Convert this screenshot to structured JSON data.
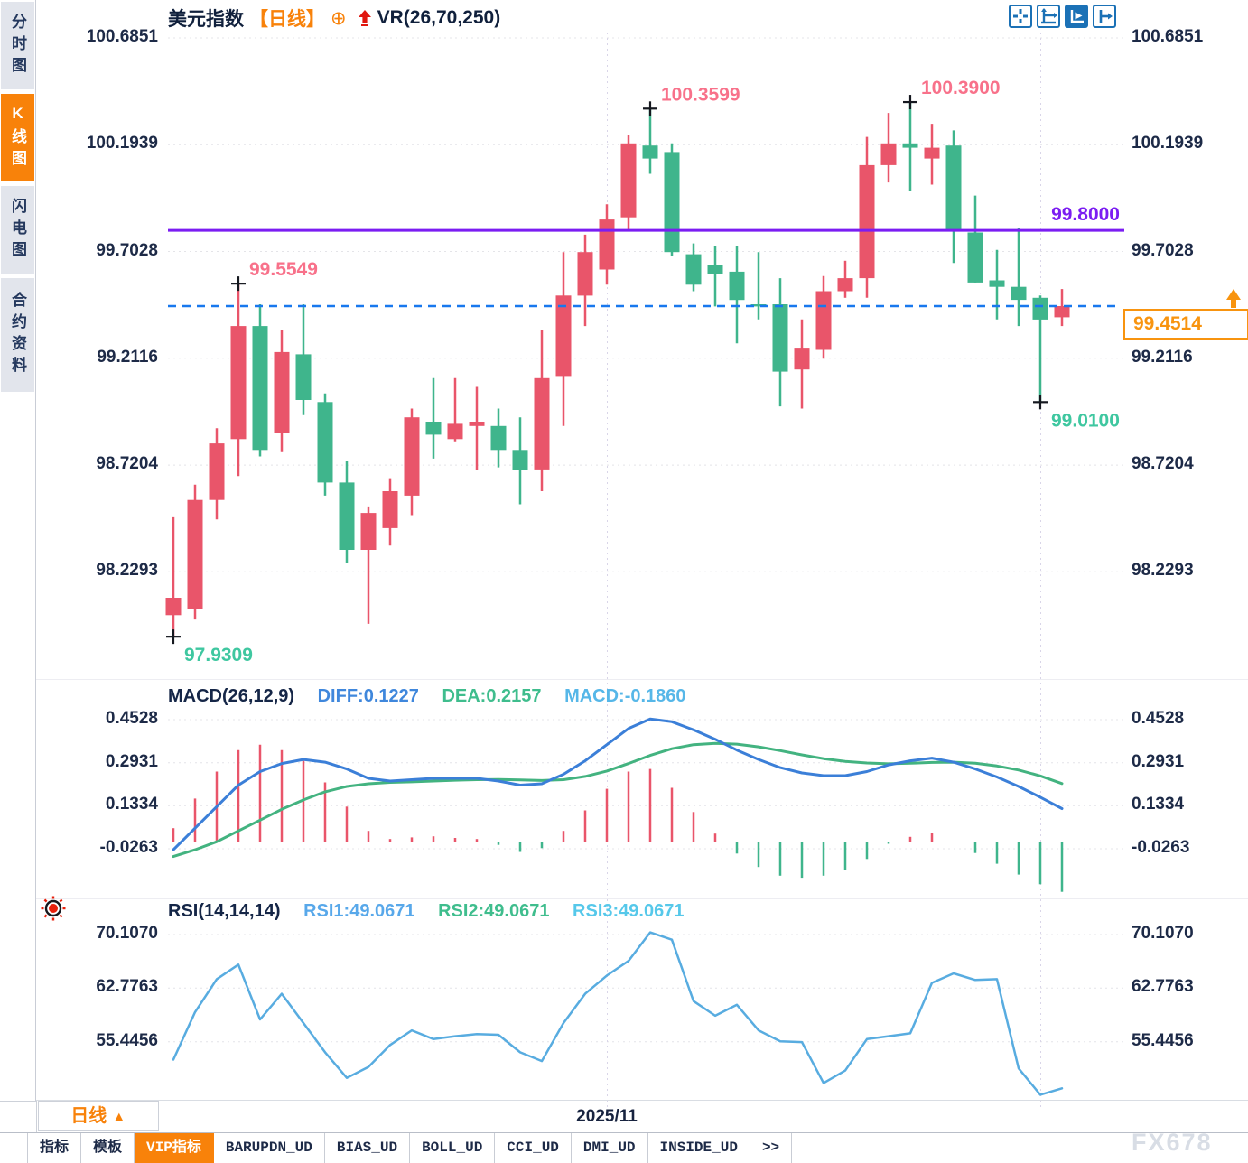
{
  "sidebar": {
    "items": [
      {
        "label": "分时图",
        "active": false
      },
      {
        "label": "K线图",
        "active": true
      },
      {
        "label": "闪电图",
        "active": false
      },
      {
        "label": "合约资料",
        "active": false
      }
    ]
  },
  "header": {
    "symbol": "美元指数",
    "period_tag": "【日线】",
    "plus_icon": "⊕",
    "overlay_indicator": "VR(26,70,250)"
  },
  "toolbar_icons": [
    "crosshair",
    "fit-axis",
    "axis-play",
    "pane-export"
  ],
  "current_price": {
    "label": "99.4514"
  },
  "hline": {
    "label": "99.8000"
  },
  "macd_header": {
    "name": "MACD(26,12,9)",
    "diff": "DIFF:0.1227",
    "dea": "DEA:0.2157",
    "macd": "MACD:-0.1860"
  },
  "rsi_header": {
    "name": "RSI(14,14,14)",
    "rsi1": "RSI1:49.0671",
    "rsi2": "RSI2:49.0671",
    "rsi3": "RSI3:49.0671"
  },
  "bottom": {
    "period_button": "日线",
    "period_arrow": "▲",
    "date_label": "2025/11",
    "watermark": "FX678",
    "tabs": [
      {
        "label": "指标",
        "active": false
      },
      {
        "label": "模板",
        "active": false
      },
      {
        "label": "VIP指标",
        "active": true
      },
      {
        "label": "BARUPDN_UD",
        "active": false
      },
      {
        "label": "BIAS_UD",
        "active": false
      },
      {
        "label": "BOLL_UD",
        "active": false
      },
      {
        "label": "CCI_UD",
        "active": false
      },
      {
        "label": "DMI_UD",
        "active": false
      },
      {
        "label": "INSIDE_UD",
        "active": false
      },
      {
        "label": ">>",
        "active": false
      }
    ]
  },
  "colors": {
    "up": "#e9556a",
    "down": "#3fb58c",
    "hline": "#7b1df2",
    "price_line": "#1878ee",
    "accent_orange": "#f8940f",
    "ann_pink": "#f8718a",
    "ann_teal": "#3fc7a0",
    "diff_line": "#3b7fd8",
    "dea_line": "#43b380",
    "rsi_line": "#58ace0",
    "grid": "#e4e4e8",
    "vgrid": "#d9d5e8",
    "cross": "#15181f",
    "icon_blue": "#1b71b6"
  },
  "chart_data": {
    "type": "candlestick",
    "title": "美元指数 日线",
    "x_axis": {
      "visible_label": "2025/11",
      "month_gridline_idx": [
        20,
        40
      ]
    },
    "main": {
      "ytick_labels": [
        "100.6851",
        "100.1939",
        "99.7028",
        "99.2116",
        "98.7204",
        "98.2293"
      ],
      "yticks": [
        100.6851,
        100.1939,
        99.7028,
        99.2116,
        98.7204,
        98.2293
      ],
      "hline_price": 99.8,
      "last_price": 99.4514,
      "candles": [
        [
          98.03,
          98.48,
          97.931,
          98.11
        ],
        [
          98.06,
          98.63,
          98.01,
          98.56
        ],
        [
          98.56,
          98.89,
          98.47,
          98.82
        ],
        [
          98.84,
          99.5549,
          98.67,
          99.36
        ],
        [
          99.36,
          99.46,
          98.76,
          98.79
        ],
        [
          98.87,
          99.34,
          98.78,
          99.24
        ],
        [
          99.23,
          99.46,
          98.95,
          99.02
        ],
        [
          99.01,
          99.05,
          98.58,
          98.64
        ],
        [
          98.64,
          98.74,
          98.27,
          98.33
        ],
        [
          98.33,
          98.53,
          97.99,
          98.5
        ],
        [
          98.43,
          98.66,
          98.35,
          98.6
        ],
        [
          98.58,
          98.98,
          98.49,
          98.94
        ],
        [
          98.92,
          99.12,
          98.75,
          98.86
        ],
        [
          98.84,
          99.12,
          98.83,
          98.91
        ],
        [
          98.9,
          99.08,
          98.7,
          98.92
        ],
        [
          98.9,
          98.98,
          98.71,
          98.79
        ],
        [
          98.79,
          98.94,
          98.54,
          98.7
        ],
        [
          98.7,
          99.34,
          98.6,
          99.12
        ],
        [
          99.13,
          99.7,
          98.9,
          99.5
        ],
        [
          99.5,
          99.78,
          99.36,
          99.7
        ],
        [
          99.62,
          99.92,
          99.55,
          99.85
        ],
        [
          99.86,
          100.24,
          99.8,
          100.2
        ],
        [
          100.19,
          100.3599,
          100.06,
          100.13
        ],
        [
          100.16,
          100.2,
          99.68,
          99.7
        ],
        [
          99.69,
          99.74,
          99.52,
          99.55
        ],
        [
          99.64,
          99.73,
          99.45,
          99.6
        ],
        [
          99.61,
          99.73,
          99.28,
          99.48
        ],
        [
          99.46,
          99.7,
          99.39,
          99.45
        ],
        [
          99.46,
          99.58,
          98.99,
          99.15
        ],
        [
          99.16,
          99.39,
          98.98,
          99.26
        ],
        [
          99.25,
          99.59,
          99.21,
          99.52
        ],
        [
          99.52,
          99.66,
          99.49,
          99.58
        ],
        [
          99.58,
          100.23,
          99.49,
          100.1
        ],
        [
          100.1,
          100.34,
          100.02,
          100.2
        ],
        [
          100.2,
          100.39,
          99.98,
          100.18
        ],
        [
          100.13,
          100.29,
          100.01,
          100.18
        ],
        [
          100.19,
          100.26,
          99.65,
          99.8
        ],
        [
          99.79,
          99.96,
          99.56,
          99.56
        ],
        [
          99.57,
          99.71,
          99.39,
          99.54
        ],
        [
          99.54,
          99.81,
          99.36,
          99.48
        ],
        [
          99.49,
          99.5,
          99.01,
          99.39
        ],
        [
          99.4,
          99.53,
          99.36,
          99.4514
        ]
      ],
      "annotations": [
        {
          "text": "99.5549",
          "idx": 3,
          "price": 99.5549,
          "pos": "high",
          "color": "#f8718a"
        },
        {
          "text": "100.3599",
          "idx": 22,
          "price": 100.3599,
          "pos": "high",
          "color": "#f8718a"
        },
        {
          "text": "100.3900",
          "idx": 34,
          "price": 100.39,
          "pos": "high",
          "color": "#f8718a"
        },
        {
          "text": "97.9309",
          "idx": 0,
          "price": 97.9309,
          "pos": "low",
          "color": "#3fc7a0"
        },
        {
          "text": "99.0100",
          "idx": 40,
          "price": 99.01,
          "pos": "low",
          "color": "#3fc7a0"
        }
      ]
    },
    "macd": {
      "ytick_labels": [
        "0.4528",
        "0.2931",
        "0.1334",
        "-0.0263"
      ],
      "yticks": [
        0.4528,
        0.2931,
        0.1334,
        -0.0263
      ],
      "diff": [
        -0.03,
        0.05,
        0.13,
        0.21,
        0.26,
        0.29,
        0.305,
        0.295,
        0.27,
        0.235,
        0.225,
        0.23,
        0.235,
        0.235,
        0.235,
        0.225,
        0.21,
        0.215,
        0.25,
        0.3,
        0.36,
        0.42,
        0.455,
        0.445,
        0.415,
        0.38,
        0.34,
        0.305,
        0.275,
        0.255,
        0.245,
        0.245,
        0.26,
        0.285,
        0.3,
        0.31,
        0.295,
        0.27,
        0.24,
        0.205,
        0.165,
        0.1227
      ],
      "dea": [
        -0.055,
        -0.03,
        0.0,
        0.04,
        0.08,
        0.12,
        0.155,
        0.185,
        0.205,
        0.215,
        0.22,
        0.222,
        0.225,
        0.228,
        0.23,
        0.231,
        0.229,
        0.227,
        0.23,
        0.242,
        0.262,
        0.29,
        0.32,
        0.345,
        0.36,
        0.365,
        0.362,
        0.352,
        0.338,
        0.322,
        0.308,
        0.298,
        0.292,
        0.289,
        0.291,
        0.294,
        0.295,
        0.291,
        0.281,
        0.266,
        0.244,
        0.2157
      ]
    },
    "rsi": {
      "ytick_labels": [
        "70.1070",
        "62.7763",
        "55.4456"
      ],
      "yticks": [
        70.107,
        62.7763,
        55.4456
      ],
      "values": [
        53.0,
        59.5,
        64.0,
        66.0,
        58.5,
        62.0,
        58.0,
        54.0,
        50.5,
        52.0,
        55.0,
        57.0,
        55.8,
        56.2,
        56.5,
        56.4,
        54.0,
        52.8,
        58.0,
        62.0,
        64.5,
        66.5,
        70.4,
        69.4,
        61.0,
        59.0,
        60.5,
        57.0,
        55.5,
        55.4,
        49.8,
        51.5,
        55.8,
        56.2,
        56.6,
        63.5,
        64.8,
        63.9,
        64.0,
        51.8,
        48.2,
        49.07
      ]
    }
  }
}
